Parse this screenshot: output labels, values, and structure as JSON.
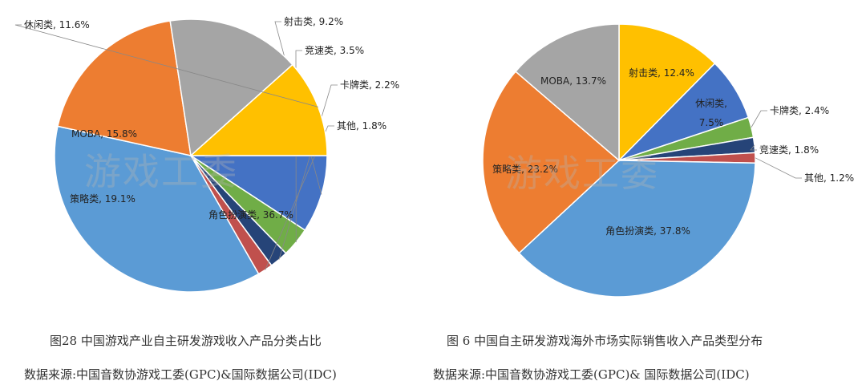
{
  "chart_data": [
    {
      "type": "pie",
      "caption": "图28 中国游戏产业自主研发游戏收入产品分类占比",
      "source": "数据来源:中国音数协游戏工委(GPC)&国际数据公司(IDC)",
      "watermark": "游戏工委",
      "slices": [
        {
          "name": "射击类",
          "value": 9.2,
          "label": "9.2%",
          "color": "#4472C4"
        },
        {
          "name": "竞速类",
          "value": 3.5,
          "label": "3.5%",
          "color": "#70AD47"
        },
        {
          "name": "卡牌类",
          "value": 2.2,
          "label": "2.2%",
          "color": "#264478"
        },
        {
          "name": "其他",
          "value": 1.8,
          "label": "1.8%",
          "color": "#C0504D"
        },
        {
          "name": "角色扮演类",
          "value": 36.7,
          "label": "36.7%",
          "color": "#5B9BD5"
        },
        {
          "name": "策略类",
          "value": 19.1,
          "label": "19.1%",
          "color": "#ED7D31"
        },
        {
          "name": "MOBA",
          "value": 15.8,
          "label": "15.8%",
          "color": "#A5A5A5"
        },
        {
          "name": "休闲类",
          "value": 11.6,
          "label": "11.6%",
          "color": "#FFC000"
        }
      ]
    },
    {
      "type": "pie",
      "caption": "图 6 中国自主研发游戏海外市场实际销售收入产品类型分布",
      "source": "数据来源:中国音数协游戏工委(GPC)& 国际数据公司(IDC)",
      "watermark": "游戏工委",
      "slices": [
        {
          "name": "射击类",
          "value": 12.4,
          "label": "12.4%",
          "color": "#FFC000"
        },
        {
          "name": "休闲类",
          "value": 7.5,
          "label": "7.5%",
          "color": "#4472C4"
        },
        {
          "name": "卡牌类",
          "value": 2.4,
          "label": "2.4%",
          "color": "#70AD47"
        },
        {
          "name": "竞速类",
          "value": 1.8,
          "label": "1.8%",
          "color": "#264478"
        },
        {
          "name": "其他",
          "value": 1.2,
          "label": "1.2%",
          "color": "#C0504D"
        },
        {
          "name": "角色扮演类",
          "value": 37.8,
          "label": "37.8%",
          "color": "#5B9BD5"
        },
        {
          "name": "策略类",
          "value": 23.2,
          "label": "23.2%",
          "color": "#ED7D31"
        },
        {
          "name": "MOBA",
          "value": 13.7,
          "label": "13.7%",
          "color": "#A5A5A5"
        }
      ]
    }
  ]
}
